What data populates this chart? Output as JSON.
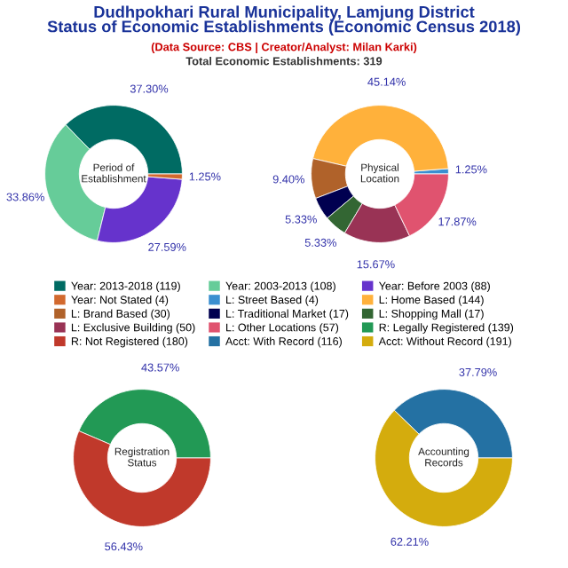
{
  "chart_data": [
    {
      "type": "donut",
      "title": "Period of\nEstablishment",
      "annotations": [
        "Dudhpokhari Rural Municipality, Lamjung District\nStatus of Economic Establishments (Economic Census 2018)",
        "(Data Source: CBS | Creator/Analyst: Milan Karki)",
        "Total Economic Establishments: 319"
      ],
      "categories": [
        "Year: 2013-2018 (119)",
        "Year: 2003-2013 (108)",
        "Year: Before 2003 (88)",
        "Year: Not Stated (4)"
      ],
      "values": [
        37.3,
        33.86,
        27.59,
        1.25
      ],
      "value_labels": [
        "37.30%",
        "33.86%",
        "27.59%",
        "1.25%"
      ],
      "colors": [
        "#006b63",
        "#66cc99",
        "#6633cc",
        "#d2692e"
      ],
      "legend": "bottom"
    },
    {
      "type": "donut",
      "title": "Physical\nLocation",
      "categories": [
        "L: Street Based (4)",
        "L: Home Based (144)",
        "L: Brand Based (30)",
        "L: Traditional Market (17)",
        "L: Shopping Mall (17)",
        "L: Exclusive Building (50)",
        "L: Other Locations (57)"
      ],
      "values": [
        1.25,
        45.14,
        9.4,
        5.33,
        5.33,
        15.67,
        17.87
      ],
      "value_labels": [
        "1.25%",
        "45.14%",
        "9.40%",
        "5.33%",
        "5.33%",
        "15.67%",
        "17.87%"
      ],
      "colors": [
        "#3a8fd0",
        "#ffb13b",
        "#b0622a",
        "#000050",
        "#336633",
        "#993355",
        "#e0536f"
      ],
      "legend": "bottom"
    },
    {
      "type": "donut",
      "title": "Registration\nStatus",
      "categories": [
        "R: Legally Registered (139)",
        "R: Not Registered (180)"
      ],
      "values": [
        43.57,
        56.43
      ],
      "value_labels": [
        "43.57%",
        "56.43%"
      ],
      "colors": [
        "#229955",
        "#c0392b"
      ],
      "legend": "top"
    },
    {
      "type": "donut",
      "title": "Accounting\nRecords",
      "categories": [
        "Acct: With Record (116)",
        "Acct: Without Record (191)"
      ],
      "values": [
        37.79,
        62.21
      ],
      "value_labels": [
        "37.79%",
        "62.21%"
      ],
      "colors": [
        "#2471a3",
        "#d4ac0d"
      ],
      "legend": "top"
    }
  ]
}
